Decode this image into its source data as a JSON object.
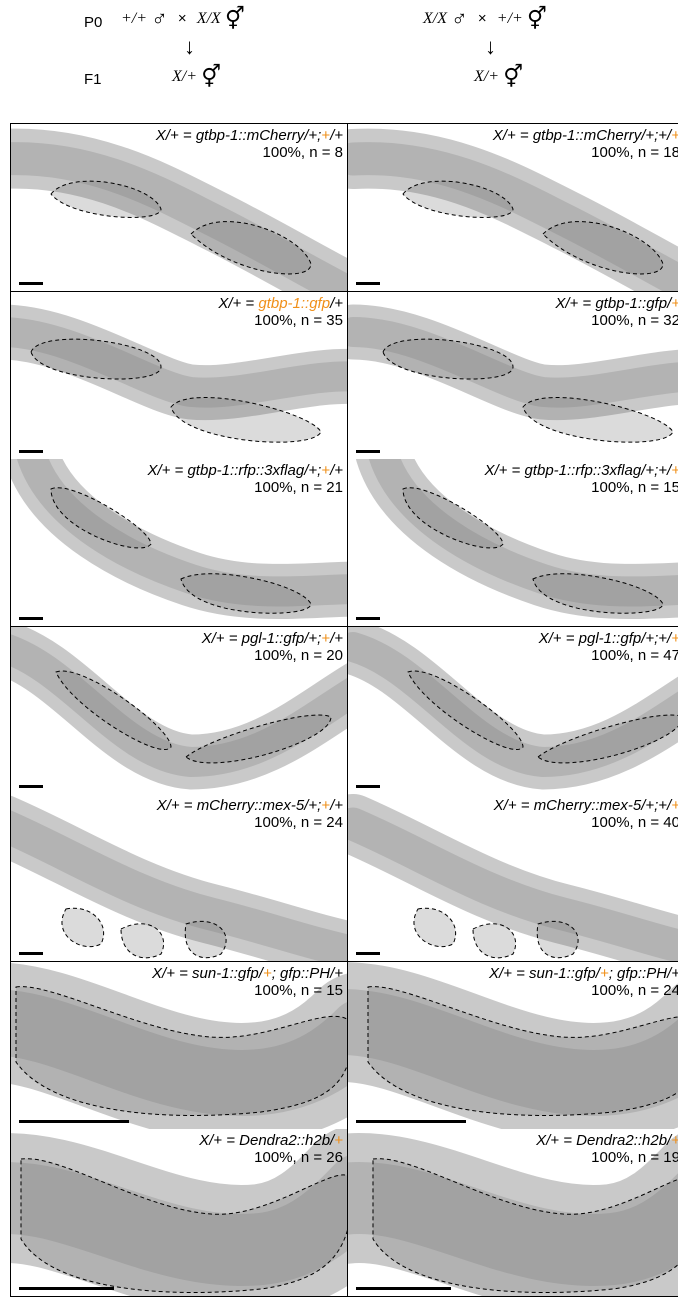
{
  "cross": {
    "gen_p0": "P0",
    "gen_f1": "F1",
    "left": {
      "p0_male": "+/+",
      "p0_herm": "X/X",
      "f1": "X/+"
    },
    "right": {
      "p0_male": "X/X",
      "p0_herm": "+/+",
      "f1": "X/+"
    },
    "times": "×",
    "male_symbol": "♂",
    "herm_symbol": "⚥",
    "arrow": "↓"
  },
  "colors": {
    "highlight": "#f0901a",
    "text": "#000000"
  },
  "panels": [
    {
      "genotype_prefix": "X/+ = ",
      "genotype_main": "gtbp-1::mCherry/+;",
      "orange": "+",
      "genotype_tail": "/+",
      "stat": "100%, n = 8"
    },
    {
      "genotype_prefix": "X/+ = ",
      "genotype_main": "gtbp-1::mCherry/+;+/",
      "orange": "+",
      "genotype_tail": "",
      "stat": "100%, n = 18"
    },
    {
      "genotype_prefix": "X/+ = ",
      "genotype_main": "",
      "orange": "gtbp-1::gfp",
      "genotype_tail": "/+",
      "stat": "100%, n = 35"
    },
    {
      "genotype_prefix": "X/+ = ",
      "genotype_main": "gtbp-1::gfp/",
      "orange": "+",
      "genotype_tail": "",
      "stat": "100%, n = 32"
    },
    {
      "genotype_prefix": "X/+ = ",
      "genotype_main": "gtbp-1::rfp::3xflag/+;",
      "orange": "+",
      "genotype_tail": "/+",
      "stat": "100%, n = 21"
    },
    {
      "genotype_prefix": "X/+ = ",
      "genotype_main": "gtbp-1::rfp::3xflag/+;+/",
      "orange": "+",
      "genotype_tail": "",
      "stat": "100%, n = 15"
    },
    {
      "genotype_prefix": "X/+ = ",
      "genotype_main": "pgl-1::gfp/+;",
      "orange": "+",
      "genotype_tail": "/+",
      "stat": "100%, n = 20"
    },
    {
      "genotype_prefix": "X/+ = ",
      "genotype_main": "pgl-1::gfp/+;+/",
      "orange": "+",
      "genotype_tail": "",
      "stat": "100%, n = 47"
    },
    {
      "genotype_prefix": "X/+ = ",
      "genotype_main": "mCherry::mex-5/+;",
      "orange": "+",
      "genotype_tail": "/+",
      "stat": "100%, n = 24"
    },
    {
      "genotype_prefix": "X/+ =  ",
      "genotype_main": "mCherry::mex-5/+;+/",
      "orange": "+",
      "genotype_tail": "",
      "stat": "100%, n = 40"
    },
    {
      "genotype_prefix": "X/+ = ",
      "genotype_main": "sun-1::gfp/",
      "orange": "+",
      "genotype_tail": "; gfp::PH/+",
      "stat": "100%, n = 15"
    },
    {
      "genotype_prefix": "X/+ = ",
      "genotype_main": "sun-1::gfp/",
      "orange": "+",
      "genotype_tail": "; gfp::PH/+",
      "stat": "100%, n = 24"
    },
    {
      "genotype_prefix": "X/+ = ",
      "genotype_main": "Dendra2::h2b/",
      "orange": "+",
      "genotype_tail": "",
      "stat": "100%, n = 26"
    },
    {
      "genotype_prefix": "X/+ = ",
      "genotype_main": "Dendra2::h2b/",
      "orange": "+",
      "genotype_tail": "",
      "stat": "100%, n = 19"
    }
  ]
}
